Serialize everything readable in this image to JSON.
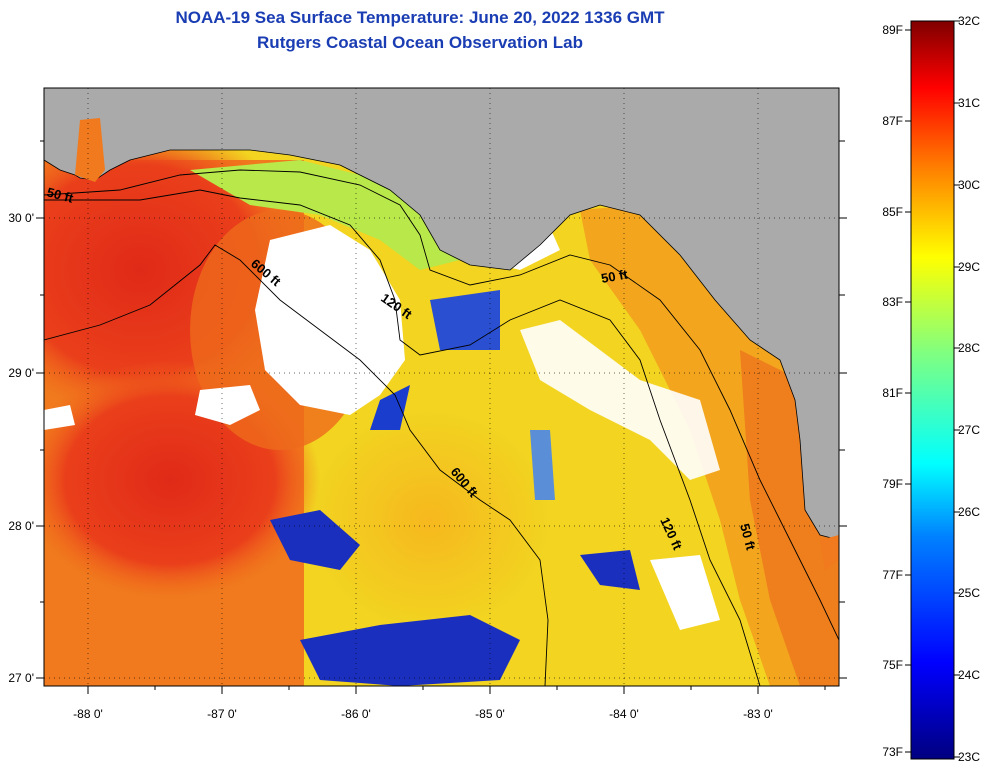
{
  "title": "NOAA-19 Sea Surface Temperature:  June 20, 2022 1336 GMT",
  "subtitle": "Rutgers Coastal Ocean Observation Lab",
  "lon_labels": [
    "-88 0'",
    "-87 0'",
    "-86 0'",
    "-85 0'",
    "-84 0'",
    "-83 0'"
  ],
  "lat_labels": [
    "30 0'",
    "29 0'",
    "28 0'",
    "27 0'"
  ],
  "contour_labels": {
    "c50_west": "50 ft",
    "c600_north": "600 ft",
    "c120_north": "120 ft",
    "c50_east": "50 ft",
    "c600_south": "600 ft",
    "c120_south": "120 ft",
    "c50_south": "50 ft"
  },
  "colorbar": {
    "fahrenheit": [
      "89F",
      "87F",
      "85F",
      "83F",
      "81F",
      "79F",
      "77F",
      "75F",
      "73F"
    ],
    "celsius": [
      "32C",
      "31C",
      "30C",
      "29C",
      "28C",
      "27C",
      "26C",
      "25C",
      "24C",
      "23C"
    ]
  },
  "colors": {
    "land": "#aaaaaa",
    "cloud": "#ffffff",
    "warm_core": "#e8301c",
    "warm": "#f26a1b",
    "mid": "#f5ad1e",
    "cool": "#f2e82a",
    "cold": "#1a2fbe",
    "title": "#1a3db3"
  }
}
